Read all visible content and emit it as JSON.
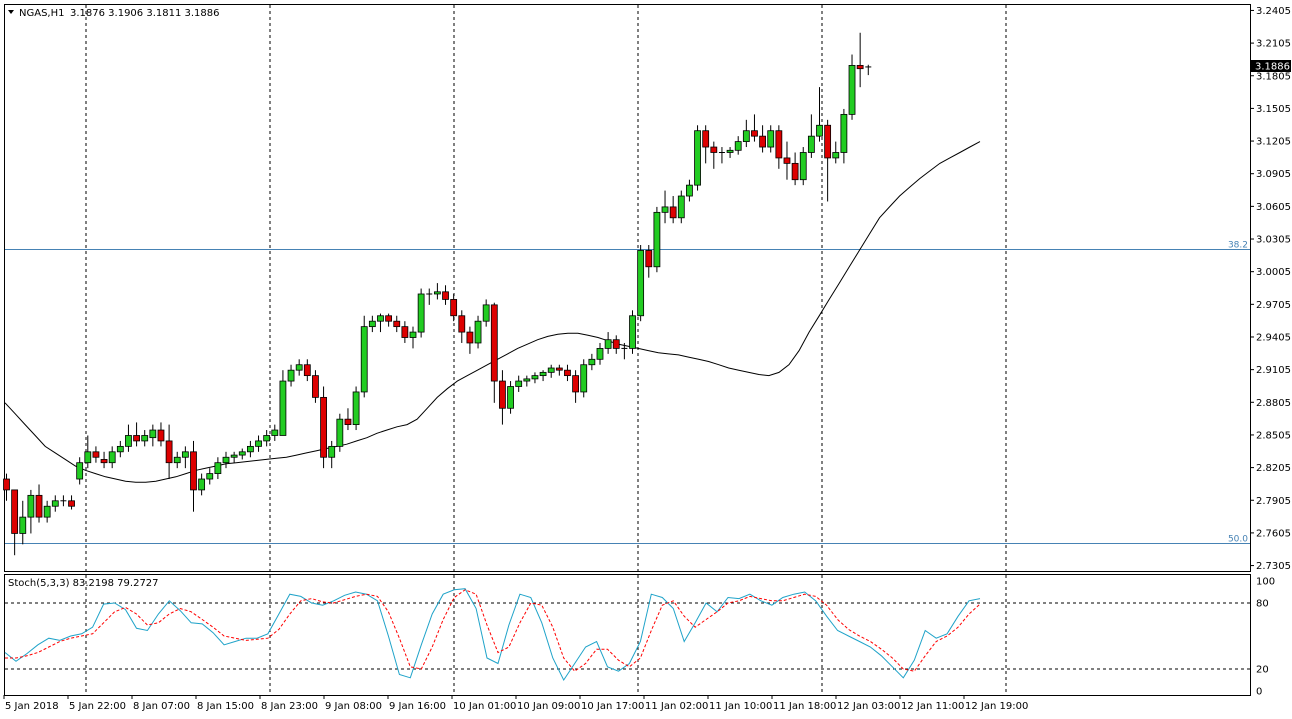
{
  "header": {
    "symbol": "NGAS,H1",
    "ohlc": "3.1876 3.1906 3.1811 3.1886"
  },
  "stoch_label": "Stoch(5,3,3) 83.2198 79.2727",
  "current_price_label": "3.1886",
  "price_axis_labels": [
    "3.2405",
    "3.2105",
    "3.1805",
    "3.1505",
    "3.1205",
    "3.0905",
    "3.0605",
    "3.0305",
    "3.0005",
    "2.9705",
    "2.9405",
    "2.9105",
    "2.8805",
    "2.8505",
    "2.8205",
    "2.7905",
    "2.7605",
    "2.7305"
  ],
  "stoch_axis_labels": [
    "100",
    "80",
    "20",
    "0"
  ],
  "time_labels": [
    "5 Jan 2018",
    "5 Jan 22:00",
    "8 Jan 07:00",
    "8 Jan 15:00",
    "8 Jan 23:00",
    "9 Jan 08:00",
    "9 Jan 16:00",
    "10 Jan 01:00",
    "10 Jan 09:00",
    "10 Jan 17:00",
    "11 Jan 02:00",
    "11 Jan 10:00",
    "11 Jan 18:00",
    "12 Jan 03:00",
    "12 Jan 11:00",
    "12 Jan 19:00"
  ],
  "fib_labels": [
    "38.2",
    "50.0"
  ],
  "colors": {
    "bull": "#22cc22",
    "bear": "#dd0000",
    "fib_line": "#4682b4",
    "stoch_main": "#1fa3c9",
    "stoch_signal": "#ff0000",
    "grid": "#000000"
  },
  "chart_data": {
    "type": "candlestick",
    "timeframe": "H1",
    "ylim": [
      2.7255,
      3.2455
    ],
    "fib_levels": [
      {
        "label": "38.2",
        "price": 3.0215
      },
      {
        "label": "50.0",
        "price": 2.7515
      }
    ],
    "candles": [
      [
        2.81,
        2.815,
        2.79,
        2.8
      ],
      [
        2.8,
        2.8,
        2.74,
        2.76
      ],
      [
        2.76,
        2.79,
        2.75,
        2.775
      ],
      [
        2.775,
        2.8,
        2.76,
        2.795
      ],
      [
        2.795,
        2.805,
        2.77,
        2.775
      ],
      [
        2.775,
        2.79,
        2.77,
        2.785
      ],
      [
        2.785,
        2.795,
        2.78,
        2.79
      ],
      [
        2.79,
        2.795,
        2.785,
        2.79
      ],
      [
        2.79,
        2.795,
        2.782,
        2.785
      ],
      [
        2.81,
        2.83,
        2.805,
        2.825
      ],
      [
        2.825,
        2.85,
        2.82,
        2.835
      ],
      [
        2.835,
        2.84,
        2.825,
        2.83
      ],
      [
        2.828,
        2.835,
        2.82,
        2.825
      ],
      [
        2.825,
        2.84,
        2.82,
        2.835
      ],
      [
        2.835,
        2.845,
        2.83,
        2.84
      ],
      [
        2.84,
        2.86,
        2.835,
        2.85
      ],
      [
        2.85,
        2.862,
        2.84,
        2.845
      ],
      [
        2.845,
        2.855,
        2.84,
        2.85
      ],
      [
        2.848,
        2.86,
        2.84,
        2.855
      ],
      [
        2.855,
        2.862,
        2.84,
        2.845
      ],
      [
        2.845,
        2.86,
        2.81,
        2.825
      ],
      [
        2.825,
        2.835,
        2.82,
        2.83
      ],
      [
        2.83,
        2.84,
        2.82,
        2.835
      ],
      [
        2.835,
        2.845,
        2.78,
        2.8
      ],
      [
        2.8,
        2.815,
        2.795,
        2.81
      ],
      [
        2.81,
        2.82,
        2.805,
        2.815
      ],
      [
        2.815,
        2.83,
        2.81,
        2.825
      ],
      [
        2.825,
        2.835,
        2.82,
        2.83
      ],
      [
        2.83,
        2.835,
        2.825,
        2.832
      ],
      [
        2.832,
        2.838,
        2.828,
        2.835
      ],
      [
        2.835,
        2.845,
        2.83,
        2.84
      ],
      [
        2.84,
        2.85,
        2.835,
        2.845
      ],
      [
        2.845,
        2.855,
        2.84,
        2.85
      ],
      [
        2.85,
        2.86,
        2.845,
        2.855
      ],
      [
        2.85,
        2.91,
        2.85,
        2.9
      ],
      [
        2.9,
        2.915,
        2.895,
        2.91
      ],
      [
        2.91,
        2.92,
        2.905,
        2.915
      ],
      [
        2.915,
        2.92,
        2.9,
        2.905
      ],
      [
        2.905,
        2.91,
        2.88,
        2.885
      ],
      [
        2.885,
        2.895,
        2.82,
        2.83
      ],
      [
        2.83,
        2.845,
        2.82,
        2.84
      ],
      [
        2.84,
        2.87,
        2.835,
        2.865
      ],
      [
        2.865,
        2.875,
        2.855,
        2.86
      ],
      [
        2.86,
        2.895,
        2.855,
        2.89
      ],
      [
        2.89,
        2.96,
        2.885,
        2.95
      ],
      [
        2.95,
        2.96,
        2.945,
        2.955
      ],
      [
        2.955,
        2.962,
        2.945,
        2.96
      ],
      [
        2.96,
        2.962,
        2.95,
        2.955
      ],
      [
        2.955,
        2.96,
        2.945,
        2.95
      ],
      [
        2.95,
        2.955,
        2.935,
        2.94
      ],
      [
        2.94,
        2.95,
        2.93,
        2.945
      ],
      [
        2.945,
        2.985,
        2.94,
        2.98
      ],
      [
        2.98,
        2.985,
        2.97,
        2.98
      ],
      [
        2.98,
        2.99,
        2.975,
        2.982
      ],
      [
        2.982,
        2.988,
        2.97,
        2.975
      ],
      [
        2.975,
        2.98,
        2.955,
        2.96
      ],
      [
        2.96,
        2.965,
        2.935,
        2.945
      ],
      [
        2.945,
        2.95,
        2.925,
        2.935
      ],
      [
        2.935,
        2.96,
        2.93,
        2.955
      ],
      [
        2.955,
        2.975,
        2.95,
        2.97
      ],
      [
        2.97,
        2.972,
        2.88,
        2.9
      ],
      [
        2.9,
        2.91,
        2.86,
        2.875
      ],
      [
        2.875,
        2.9,
        2.87,
        2.895
      ],
      [
        2.895,
        2.905,
        2.89,
        2.9
      ],
      [
        2.9,
        2.905,
        2.895,
        2.902
      ],
      [
        2.902,
        2.908,
        2.898,
        2.905
      ],
      [
        2.905,
        2.91,
        2.9,
        2.908
      ],
      [
        2.908,
        2.915,
        2.903,
        2.912
      ],
      [
        2.912,
        2.915,
        2.905,
        2.91
      ],
      [
        2.91,
        2.915,
        2.9,
        2.905
      ],
      [
        2.905,
        2.91,
        2.88,
        2.89
      ],
      [
        2.89,
        2.92,
        2.885,
        2.915
      ],
      [
        2.915,
        2.925,
        2.91,
        2.92
      ],
      [
        2.92,
        2.935,
        2.915,
        2.93
      ],
      [
        2.93,
        2.945,
        2.925,
        2.938
      ],
      [
        2.938,
        2.942,
        2.925,
        2.93
      ],
      [
        2.93,
        2.935,
        2.92,
        2.93
      ],
      [
        2.93,
        2.965,
        2.925,
        2.96
      ],
      [
        2.96,
        3.025,
        2.955,
        3.02
      ],
      [
        3.02,
        3.025,
        2.995,
        3.005
      ],
      [
        3.005,
        3.06,
        3.0,
        3.055
      ],
      [
        3.055,
        3.075,
        3.045,
        3.06
      ],
      [
        3.06,
        3.07,
        3.045,
        3.05
      ],
      [
        3.05,
        3.075,
        3.045,
        3.07
      ],
      [
        3.07,
        3.085,
        3.065,
        3.08
      ],
      [
        3.08,
        3.135,
        3.075,
        3.13
      ],
      [
        3.13,
        3.135,
        3.1,
        3.115
      ],
      [
        3.115,
        3.12,
        3.095,
        3.11
      ],
      [
        3.11,
        3.115,
        3.1,
        3.11
      ],
      [
        3.11,
        3.115,
        3.105,
        3.112
      ],
      [
        3.112,
        3.125,
        3.108,
        3.12
      ],
      [
        3.12,
        3.14,
        3.115,
        3.13
      ],
      [
        3.13,
        3.145,
        3.12,
        3.125
      ],
      [
        3.125,
        3.135,
        3.11,
        3.115
      ],
      [
        3.115,
        3.135,
        3.11,
        3.13
      ],
      [
        3.13,
        3.135,
        3.095,
        3.105
      ],
      [
        3.105,
        3.12,
        3.085,
        3.1
      ],
      [
        3.1,
        3.11,
        3.08,
        3.085
      ],
      [
        3.085,
        3.115,
        3.08,
        3.11
      ],
      [
        3.11,
        3.145,
        3.105,
        3.125
      ],
      [
        3.125,
        3.17,
        3.12,
        3.135
      ],
      [
        3.135,
        3.14,
        3.065,
        3.105
      ],
      [
        3.105,
        3.12,
        3.1,
        3.11
      ],
      [
        3.11,
        3.15,
        3.1,
        3.145
      ],
      [
        3.145,
        3.2,
        3.14,
        3.19
      ],
      [
        3.19,
        3.22,
        3.17,
        3.187
      ],
      [
        3.1876,
        3.1906,
        3.1811,
        3.1886
      ]
    ],
    "moving_average": [
      2.88,
      2.87,
      2.86,
      2.85,
      2.84,
      2.834,
      2.828,
      2.822,
      2.818,
      2.815,
      2.812,
      2.81,
      2.808,
      2.807,
      2.807,
      2.808,
      2.81,
      2.812,
      2.815,
      2.818,
      2.82,
      2.822,
      2.824,
      2.825,
      2.826,
      2.827,
      2.828,
      2.829,
      2.83,
      2.832,
      2.834,
      2.836,
      2.838,
      2.84,
      2.842,
      2.845,
      2.848,
      2.852,
      2.855,
      2.858,
      2.86,
      2.865,
      2.875,
      2.885,
      2.893,
      2.9,
      2.905,
      2.91,
      2.915,
      2.92,
      2.925,
      2.93,
      2.934,
      2.938,
      2.941,
      2.943,
      2.944,
      2.944,
      2.942,
      2.94,
      2.937,
      2.934,
      2.932,
      2.93,
      2.928,
      2.926,
      2.925,
      2.924,
      2.922,
      2.92,
      2.918,
      2.915,
      2.912,
      2.91,
      2.908,
      2.906,
      2.905,
      2.908,
      2.915,
      2.928,
      2.945,
      2.96,
      2.975,
      2.99,
      3.005,
      3.02,
      3.035,
      3.05,
      3.06,
      3.07,
      3.078,
      3.086,
      3.093,
      3.1,
      3.105,
      3.11,
      3.115,
      3.12
    ],
    "stoch_ylim": [
      0,
      100
    ],
    "stoch_levels": [
      80,
      20
    ],
    "stoch_main": [
      35,
      27,
      34,
      42,
      48,
      46,
      50,
      52,
      58,
      79,
      80,
      74,
      57,
      55,
      70,
      82,
      73,
      62,
      61,
      53,
      42,
      45,
      48,
      48,
      52,
      70,
      88,
      86,
      80,
      78,
      82,
      87,
      90,
      88,
      82,
      50,
      15,
      12,
      42,
      70,
      88,
      92,
      93,
      75,
      30,
      25,
      60,
      88,
      85,
      62,
      30,
      10,
      25,
      40,
      45,
      22,
      18,
      25,
      45,
      88,
      85,
      75,
      45,
      62,
      80,
      72,
      85,
      84,
      88,
      82,
      78,
      85,
      88,
      90,
      82,
      68,
      55,
      50,
      45,
      40,
      32,
      22,
      12,
      28,
      55,
      48,
      52,
      68,
      82,
      84
    ],
    "stoch_signal": [
      30,
      30,
      32,
      35,
      40,
      45,
      48,
      50,
      52,
      62,
      72,
      76,
      70,
      60,
      62,
      70,
      75,
      72,
      65,
      58,
      50,
      48,
      46,
      47,
      48,
      56,
      70,
      82,
      84,
      81,
      80,
      83,
      86,
      88,
      86,
      72,
      48,
      22,
      20,
      40,
      65,
      85,
      92,
      88,
      60,
      35,
      40,
      62,
      80,
      78,
      58,
      30,
      18,
      25,
      38,
      38,
      28,
      22,
      30,
      55,
      78,
      82,
      68,
      58,
      65,
      72,
      80,
      82,
      86,
      84,
      82,
      82,
      85,
      88,
      86,
      78,
      65,
      56,
      50,
      45,
      38,
      30,
      20,
      18,
      32,
      45,
      50,
      58,
      70,
      79
    ]
  }
}
